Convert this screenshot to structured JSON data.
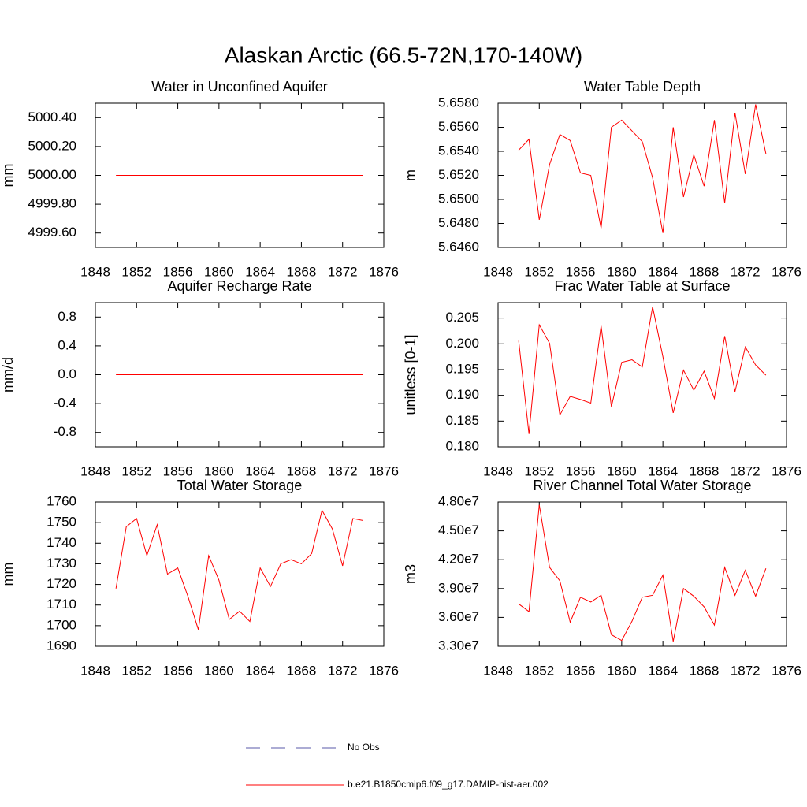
{
  "title": "Alaskan Arctic (66.5-72N,170-140W)",
  "legend": [
    {
      "label": "No Obs",
      "color": "#5a5aa8",
      "dash": true
    },
    {
      "label": "b.e21.B1850cmip6.f09_g17.DAMIP-hist-aer.002",
      "color": "#ff0000",
      "dash": false
    }
  ],
  "chart_data": [
    {
      "type": "line",
      "title": "Water in Unconfined Aquifer",
      "y_label": "mm",
      "x": [
        1850,
        1851,
        1852,
        1853,
        1854,
        1855,
        1856,
        1857,
        1858,
        1859,
        1860,
        1861,
        1862,
        1863,
        1864,
        1865,
        1866,
        1867,
        1868,
        1869,
        1870,
        1871,
        1872,
        1873,
        1874
      ],
      "series": [
        {
          "color": "#ff0000",
          "values": [
            5000,
            5000,
            5000,
            5000,
            5000,
            5000,
            5000,
            5000,
            5000,
            5000,
            5000,
            5000,
            5000,
            5000,
            5000,
            5000,
            5000,
            5000,
            5000,
            5000,
            5000,
            5000,
            5000,
            5000,
            5000
          ]
        }
      ],
      "xlim": [
        1848,
        1876
      ],
      "xticks": [
        1848,
        1852,
        1856,
        1860,
        1864,
        1868,
        1872,
        1876
      ],
      "ylim": [
        4999.5,
        5000.5
      ],
      "yticks": [
        {
          "value": 4999.6,
          "label": "4999.60"
        },
        {
          "value": 4999.8,
          "label": "4999.80"
        },
        {
          "value": 5000,
          "label": "5000.00"
        },
        {
          "value": 5000.2,
          "label": "5000.20"
        },
        {
          "value": 5000.4,
          "label": "5000.40"
        }
      ]
    },
    {
      "type": "line",
      "title": "Water Table Depth",
      "y_label": "m",
      "x": [
        1850,
        1851,
        1852,
        1853,
        1854,
        1855,
        1856,
        1857,
        1858,
        1859,
        1860,
        1861,
        1862,
        1863,
        1864,
        1865,
        1866,
        1867,
        1868,
        1869,
        1870,
        1871,
        1872,
        1873,
        1874
      ],
      "series": [
        {
          "color": "#ff0000",
          "values": [
            5.6541,
            5.655,
            5.6483,
            5.6529,
            5.6554,
            5.6549,
            5.6522,
            5.652,
            5.6476,
            5.656,
            5.6566,
            5.6557,
            5.6548,
            5.6518,
            5.6472,
            5.656,
            5.6502,
            5.6537,
            5.6511,
            5.6566,
            5.6497,
            5.6572,
            5.6521,
            5.6579,
            5.6538
          ]
        }
      ],
      "xlim": [
        1848,
        1876
      ],
      "xticks": [
        1848,
        1852,
        1856,
        1860,
        1864,
        1868,
        1872,
        1876
      ],
      "ylim": [
        5.646,
        5.658
      ],
      "yticks": [
        {
          "value": 5.646,
          "label": "5.6460"
        },
        {
          "value": 5.648,
          "label": "5.6480"
        },
        {
          "value": 5.65,
          "label": "5.6500"
        },
        {
          "value": 5.652,
          "label": "5.6520"
        },
        {
          "value": 5.654,
          "label": "5.6540"
        },
        {
          "value": 5.656,
          "label": "5.6560"
        },
        {
          "value": 5.658,
          "label": "5.6580"
        }
      ]
    },
    {
      "type": "line",
      "title": "Aquifer Recharge Rate",
      "y_label": "mm/d",
      "x": [
        1850,
        1851,
        1852,
        1853,
        1854,
        1855,
        1856,
        1857,
        1858,
        1859,
        1860,
        1861,
        1862,
        1863,
        1864,
        1865,
        1866,
        1867,
        1868,
        1869,
        1870,
        1871,
        1872,
        1873,
        1874
      ],
      "series": [
        {
          "color": "#ff0000",
          "values": [
            0,
            0,
            0,
            0,
            0,
            0,
            0,
            0,
            0,
            0,
            0,
            0,
            0,
            0,
            0,
            0,
            0,
            0,
            0,
            0,
            0,
            0,
            0,
            0,
            0
          ]
        }
      ],
      "xlim": [
        1848,
        1876
      ],
      "xticks": [
        1848,
        1852,
        1856,
        1860,
        1864,
        1868,
        1872,
        1876
      ],
      "ylim": [
        -1,
        1
      ],
      "yticks": [
        -0.8,
        -0.4,
        {
          "value": 0,
          "label": "0.0"
        },
        0.4,
        0.8
      ]
    },
    {
      "type": "line",
      "title": "Frac Water Table at Surface",
      "y_label": "unitless [0-1]",
      "x": [
        1850,
        1851,
        1852,
        1853,
        1854,
        1855,
        1856,
        1857,
        1858,
        1859,
        1860,
        1861,
        1862,
        1863,
        1864,
        1865,
        1866,
        1867,
        1868,
        1869,
        1870,
        1871,
        1872,
        1873,
        1874
      ],
      "series": [
        {
          "color": "#ff0000",
          "values": [
            0.2006,
            0.1825,
            0.2037,
            0.2001,
            0.1862,
            0.1898,
            0.1892,
            0.1885,
            0.2035,
            0.1878,
            0.1964,
            0.1969,
            0.1955,
            0.2072,
            0.1975,
            0.1866,
            0.1949,
            0.191,
            0.1947,
            0.1894,
            0.2015,
            0.1907,
            0.1994,
            0.1959,
            0.1939
          ]
        }
      ],
      "xlim": [
        1848,
        1876
      ],
      "xticks": [
        1848,
        1852,
        1856,
        1860,
        1864,
        1868,
        1872,
        1876
      ],
      "ylim": [
        0.18,
        0.208
      ],
      "yticks": [
        {
          "value": 0.18,
          "label": "0.180"
        },
        0.185,
        {
          "value": 0.19,
          "label": "0.190"
        },
        0.195,
        {
          "value": 0.2,
          "label": "0.200"
        },
        0.205
      ]
    },
    {
      "type": "line",
      "title": "Total Water Storage",
      "y_label": "mm",
      "x": [
        1850,
        1851,
        1852,
        1853,
        1854,
        1855,
        1856,
        1857,
        1858,
        1859,
        1860,
        1861,
        1862,
        1863,
        1864,
        1865,
        1866,
        1867,
        1868,
        1869,
        1870,
        1871,
        1872,
        1873,
        1874
      ],
      "series": [
        {
          "color": "#ff0000",
          "values": [
            1718,
            1748,
            1752,
            1734,
            1749,
            1725,
            1728,
            1714,
            1698,
            1734,
            1722,
            1703,
            1707,
            1702,
            1728,
            1719,
            1730,
            1732,
            1730,
            1735,
            1756,
            1747,
            1729,
            1752,
            1751
          ]
        }
      ],
      "xlim": [
        1848,
        1876
      ],
      "xticks": [
        1848,
        1852,
        1856,
        1860,
        1864,
        1868,
        1872,
        1876
      ],
      "ylim": [
        1690,
        1760
      ],
      "yticks": [
        1690,
        1700,
        1710,
        1720,
        1730,
        1740,
        1750,
        1760
      ]
    },
    {
      "type": "line",
      "title": "River Channel Total Water Storage",
      "y_label": "m3",
      "x": [
        1850,
        1851,
        1852,
        1853,
        1854,
        1855,
        1856,
        1857,
        1858,
        1859,
        1860,
        1861,
        1862,
        1863,
        1864,
        1865,
        1866,
        1867,
        1868,
        1869,
        1870,
        1871,
        1872,
        1873,
        1874
      ],
      "series": [
        {
          "color": "#ff0000",
          "values": [
            37400000,
            36600000,
            47700000,
            41200000,
            39800000,
            35500000,
            38100000,
            37600000,
            38300000,
            34200000,
            33600000,
            35600000,
            38100000,
            38300000,
            40400000,
            33500000,
            39000000,
            38200000,
            37100000,
            35200000,
            41200000,
            38300000,
            40900000,
            38200000,
            41100000
          ]
        }
      ],
      "xlim": [
        1848,
        1876
      ],
      "xticks": [
        1848,
        1852,
        1856,
        1860,
        1864,
        1868,
        1872,
        1876
      ],
      "ylim": [
        33000000,
        48000000
      ],
      "yticks": [
        {
          "value": 33000000,
          "label": "3.30e7"
        },
        {
          "value": 36000000,
          "label": "3.60e7"
        },
        {
          "value": 39000000,
          "label": "3.90e7"
        },
        {
          "value": 42000000,
          "label": "4.20e7"
        },
        {
          "value": 45000000,
          "label": "4.50e7"
        },
        {
          "value": 48000000,
          "label": "4.80e7"
        }
      ]
    }
  ]
}
